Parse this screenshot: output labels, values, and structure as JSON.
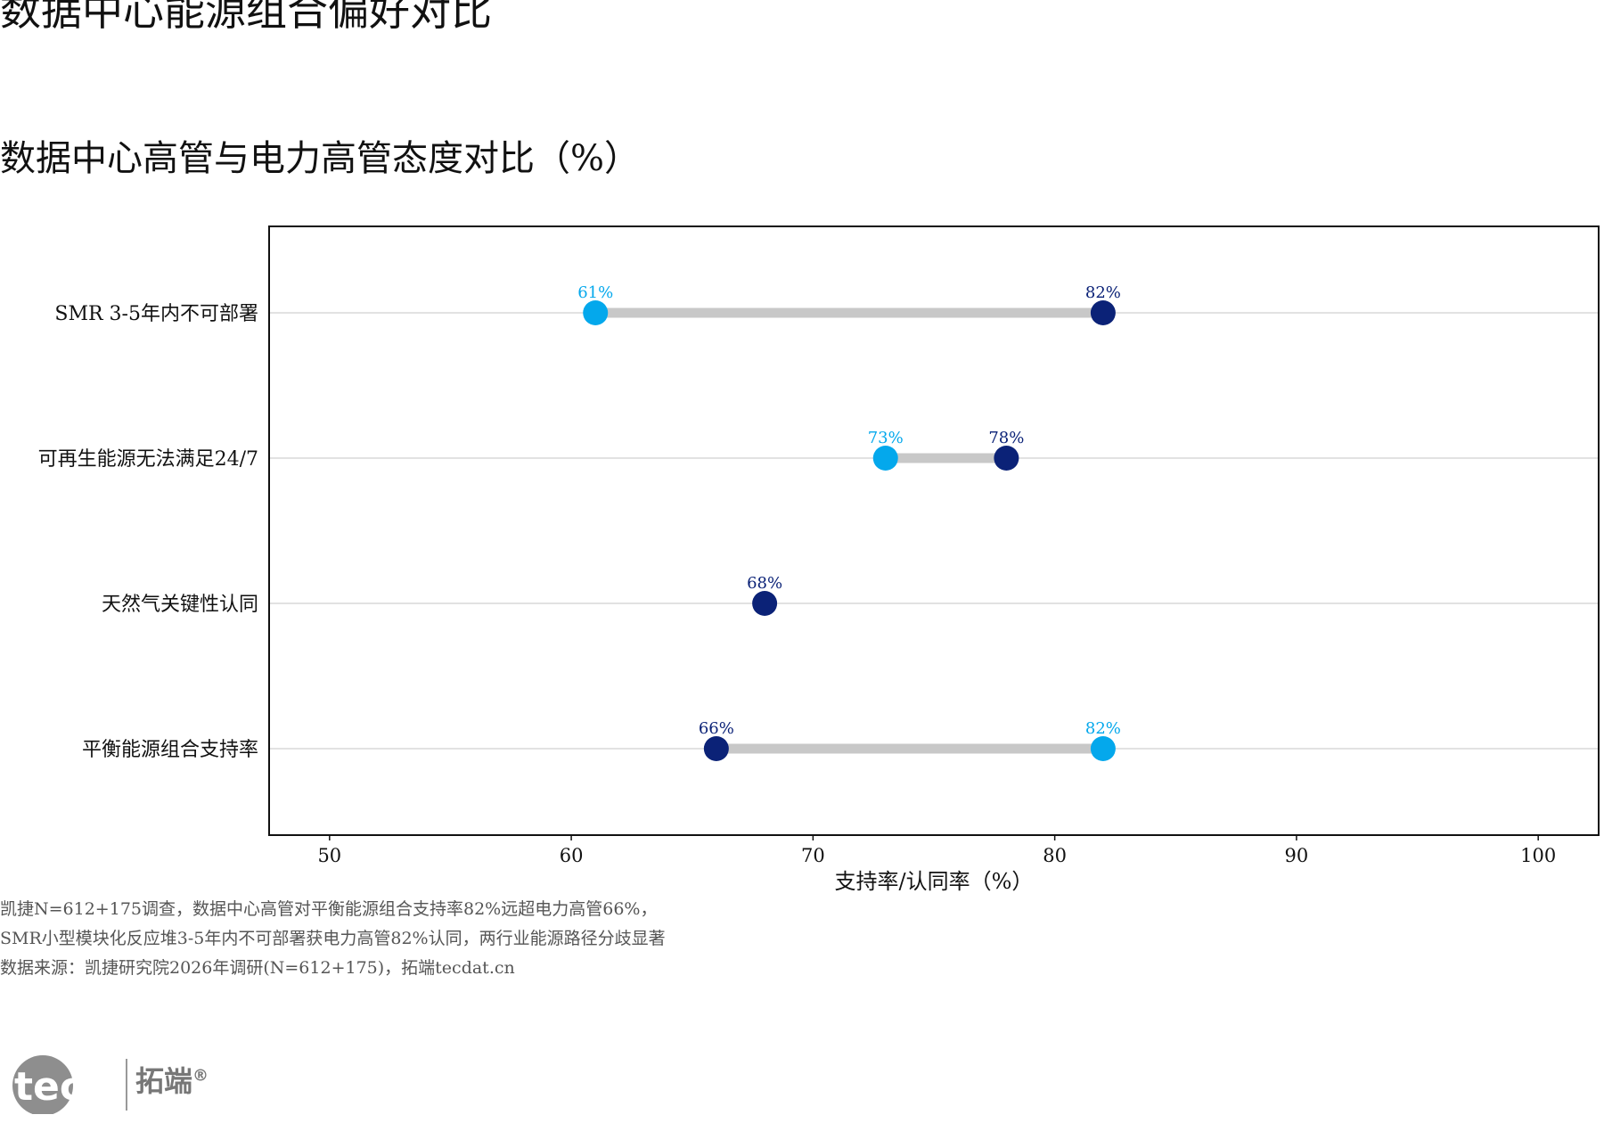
{
  "title": "数据中心能源组合偏好对比",
  "notes": [
    "凯捷N=612+175调查，数据中心高管对平衡能源组合支持率82%远超电力高管66%，",
    "SMR小型模块化反应堆3-5年内不可部署获电力高管82%认同，两行业能源路径分歧显著",
    "数据来源：凯捷研究院2026年调研(N=612+175)，拓端tecdat.cn"
  ],
  "logo": {
    "word": "tecdat",
    "cn": "拓端",
    "mark": "®"
  },
  "colors": {
    "light": "#04a8ec",
    "dark": "#0b2277",
    "connector": "#c8c8c8",
    "grid": "#d9d9d9"
  },
  "chart_data": {
    "type": "dumbbell",
    "title": "数据中心高管与电力高管态度对比（%）",
    "xlabel": "支持率/认同率（%）",
    "xlim": [
      47.5,
      102.5
    ],
    "xticks": [
      "50",
      "60",
      "70",
      "80",
      "90",
      "100"
    ],
    "xtick_values": [
      50,
      60,
      70,
      80,
      90,
      100
    ],
    "grid": "horizontal",
    "rows": [
      {
        "category": "SMR 3-5年内不可部署",
        "points": [
          {
            "value": 61,
            "label": "61%",
            "color": "light"
          },
          {
            "value": 82,
            "label": "82%",
            "color": "dark"
          }
        ]
      },
      {
        "category": "可再生能源无法满足24/7",
        "points": [
          {
            "value": 73,
            "label": "73%",
            "color": "light"
          },
          {
            "value": 78,
            "label": "78%",
            "color": "dark"
          }
        ]
      },
      {
        "category": "天然气关键性认同",
        "points": [
          {
            "value": 68,
            "label": "68%",
            "color": "dark"
          }
        ]
      },
      {
        "category": "平衡能源组合支持率",
        "points": [
          {
            "value": 66,
            "label": "66%",
            "color": "dark"
          },
          {
            "value": 82,
            "label": "82%",
            "color": "light"
          }
        ]
      }
    ]
  }
}
